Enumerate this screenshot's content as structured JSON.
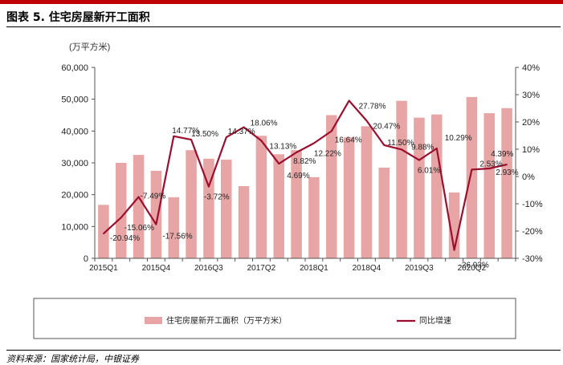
{
  "header": {
    "title": "图表 5. 住宅房屋新开工面积"
  },
  "footer": {
    "source": "资料来源：国家统计局，中银证券"
  },
  "chart_data": {
    "type": "bar",
    "unit_label": "(万平方米)",
    "x": [
      "2015Q1",
      "2015Q2",
      "2015Q3",
      "2015Q4",
      "2016Q1",
      "2016Q2",
      "2016Q3",
      "2016Q4",
      "2017Q1",
      "2017Q2",
      "2017Q3",
      "2017Q4",
      "2018Q1",
      "2018Q2",
      "2018Q3",
      "2018Q4",
      "2019Q1",
      "2019Q2",
      "2019Q3",
      "2019Q4",
      "2020Q1",
      "2020Q2",
      "2020Q3",
      "2020Q4"
    ],
    "x_tick_labels": [
      "2015Q1",
      "",
      "",
      "2015Q4",
      "",
      "",
      "2016Q3",
      "",
      "",
      "2017Q2",
      "",
      "",
      "2018Q1",
      "",
      "",
      "2018Q4",
      "",
      "",
      "2019Q3",
      "",
      "",
      "2020Q2",
      "",
      ""
    ],
    "y_left": {
      "min": 0,
      "max": 60000,
      "step": 10000,
      "tick_labels": [
        "0",
        "10,000",
        "20,000",
        "30,000",
        "40,000",
        "50,000",
        "60,000"
      ]
    },
    "y_right": {
      "min": -30,
      "max": 40,
      "step": 10,
      "tick_labels": [
        "-30%",
        "-20%",
        "-10%",
        "0%",
        "10%",
        "20%",
        "30%",
        "40%"
      ]
    },
    "series": [
      {
        "name": "住宅房屋新开工面积（万平方米）",
        "kind": "bar",
        "axis": "left",
        "color": "#e8a5a5",
        "values": [
          16800,
          30000,
          32500,
          27500,
          19200,
          34000,
          31300,
          31000,
          22700,
          38500,
          32700,
          34000,
          25500,
          45000,
          38000,
          41500,
          28500,
          49500,
          44200,
          45200,
          20700,
          50700,
          45600,
          47200
        ]
      },
      {
        "name": "同比增速",
        "kind": "line",
        "axis": "right",
        "color": "#9b0f2e",
        "values": [
          -20.94,
          -15.06,
          -7.49,
          -17.56,
          14.77,
          13.5,
          -3.72,
          14.37,
          18.06,
          13.13,
          4.69,
          8.82,
          12.22,
          16.64,
          27.78,
          20.47,
          11.5,
          9.88,
          6.01,
          10.29,
          -26.93,
          2.53,
          2.93,
          4.39
        ],
        "labels": [
          "-20.94%",
          "-15.06%",
          "-7.49%",
          "-17.56%",
          "14.77%",
          "13.50%",
          "-3.72%",
          "14.37%",
          "18.06%",
          "13.13%",
          "4.69%",
          "8.82%",
          "12.22%",
          "16.64%",
          "27.78%",
          "20.47%",
          "11.50%",
          "9.88%",
          "6.01%",
          "10.29%",
          "-26.93%",
          "2.53%",
          "2.93%",
          "4.39%"
        ]
      }
    ],
    "legend": {
      "position": "bottom"
    }
  }
}
